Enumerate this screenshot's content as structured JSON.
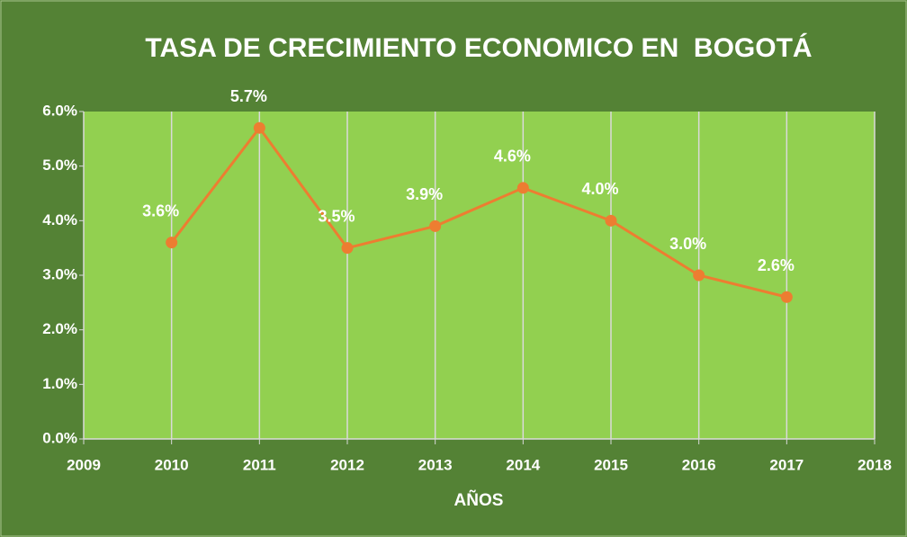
{
  "chart_data": {
    "type": "line",
    "title": "TASA DE CRECIMIENTO ECONOMICO EN  BOGOTÁ",
    "x_label": "AÑOS",
    "x": [
      2010,
      2011,
      2012,
      2013,
      2014,
      2015,
      2016,
      2017
    ],
    "values": [
      3.6,
      5.7,
      3.5,
      3.9,
      4.6,
      4.0,
      3.0,
      2.6
    ],
    "value_labels": [
      "3.6%",
      "5.7%",
      "3.5%",
      "3.9%",
      "4.6%",
      "4.0%",
      "3.0%",
      "2.6%"
    ],
    "color": "#ed7d31",
    "xlim": [
      2009,
      2018
    ],
    "xticks": [
      2009,
      2010,
      2011,
      2012,
      2013,
      2014,
      2015,
      2016,
      2017,
      2018
    ],
    "ylim": [
      0,
      6
    ],
    "yticks": [
      {
        "value": 0,
        "label": "0.0%"
      },
      {
        "value": 1,
        "label": "1.0%"
      },
      {
        "value": 2,
        "label": "2.0%"
      },
      {
        "value": 3,
        "label": "3.0%"
      },
      {
        "value": 4,
        "label": "4.0%"
      },
      {
        "value": 5,
        "label": "5.0%"
      },
      {
        "value": 6,
        "label": "6.0%"
      }
    ],
    "grid": true
  }
}
